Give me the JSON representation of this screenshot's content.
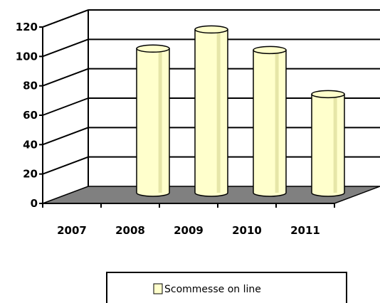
{
  "chart_data": {
    "type": "bar",
    "style": "3d-cylinder",
    "categories": [
      "2007",
      "2008",
      "2009",
      "2010",
      "2011"
    ],
    "series": [
      {
        "name": "Scommesse on line",
        "values": [
          0,
          101,
          114,
          100,
          70
        ]
      }
    ],
    "ylim": [
      0,
      120
    ],
    "yticks": [
      "0",
      "20",
      "40",
      "60",
      "80",
      "100",
      "120"
    ],
    "grid": true,
    "legend_position": "bottom",
    "colors": {
      "bar_fill": "#ffffcc",
      "bar_shade": "#e6e6a8",
      "floor": "#808080",
      "grid": "#000000"
    }
  }
}
